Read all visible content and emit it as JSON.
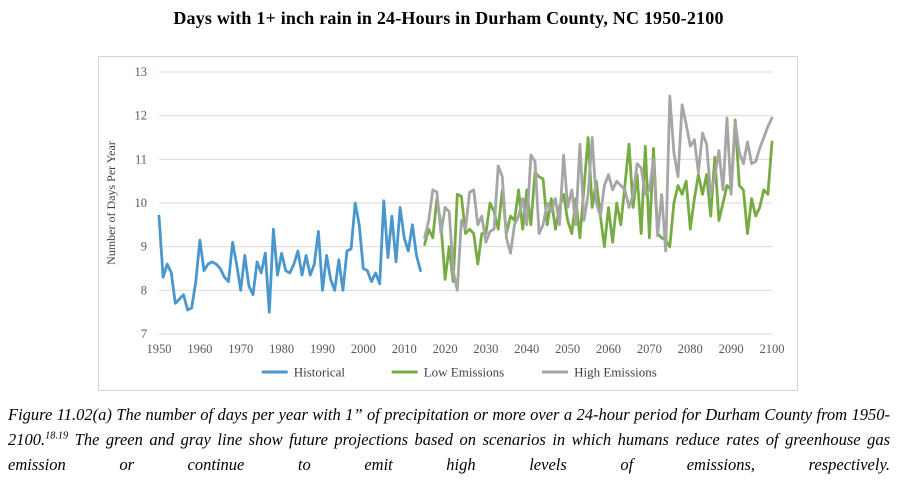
{
  "chart_data": {
    "type": "line",
    "title": "Days with 1+ inch rain in 24-Hours in Durham County, NC 1950-2100",
    "xlabel": "",
    "ylabel": "Number of Days Per Year",
    "ylim": [
      7,
      13
    ],
    "yticks": [
      7,
      8,
      9,
      10,
      11,
      12,
      13
    ],
    "xlim": [
      1950,
      2100
    ],
    "xticks": [
      1950,
      1960,
      1970,
      1980,
      1990,
      2000,
      2010,
      2020,
      2030,
      2040,
      2050,
      2060,
      2070,
      2080,
      2090,
      2100
    ],
    "grid": "horizontal",
    "grid_color": "#D9D9D9",
    "axis_text_color": "#595959",
    "legend_position": "bottom",
    "series": [
      {
        "name": "Historical",
        "color": "#4A97CE",
        "start_year": 1950,
        "values": [
          9.7,
          8.3,
          8.6,
          8.4,
          7.7,
          7.8,
          7.9,
          7.55,
          7.6,
          8.2,
          9.15,
          8.45,
          8.6,
          8.65,
          8.6,
          8.5,
          8.3,
          8.2,
          9.1,
          8.6,
          8.0,
          8.8,
          8.1,
          7.9,
          8.65,
          8.4,
          8.85,
          7.5,
          9.4,
          8.35,
          8.85,
          8.45,
          8.4,
          8.6,
          8.9,
          8.35,
          8.8,
          8.35,
          8.6,
          9.35,
          8.0,
          8.8,
          8.25,
          8.0,
          8.7,
          8.0,
          8.9,
          8.95,
          10.0,
          9.5,
          8.5,
          8.45,
          8.2,
          8.4,
          8.15,
          10.05,
          8.75,
          9.7,
          8.65,
          9.9,
          9.2,
          8.9,
          9.5,
          8.8,
          8.45
        ]
      },
      {
        "name": "Low Emissions",
        "color": "#77AC43",
        "start_year": 2015,
        "values": [
          9.05,
          9.4,
          9.2,
          10.1,
          9.5,
          8.25,
          9.0,
          8.2,
          10.2,
          10.15,
          9.3,
          9.4,
          9.3,
          8.6,
          9.3,
          9.3,
          10.0,
          9.8,
          9.4,
          10.3,
          9.3,
          9.7,
          9.6,
          10.3,
          9.4,
          10.3,
          9.5,
          10.7,
          10.6,
          10.55,
          9.5,
          10.1,
          9.4,
          9.9,
          10.2,
          9.6,
          9.3,
          10.1,
          9.2,
          10.35,
          11.5,
          9.9,
          10.5,
          9.7,
          9.0,
          9.9,
          9.1,
          10.0,
          9.5,
          10.4,
          11.35,
          9.9,
          10.65,
          9.3,
          11.3,
          9.2,
          11.25,
          9.3,
          9.2,
          9.15,
          9.0,
          10.0,
          10.4,
          10.2,
          10.5,
          9.4,
          10.1,
          10.65,
          10.2,
          10.65,
          9.7,
          11.05,
          9.6,
          10.0,
          10.4,
          10.3,
          11.9,
          10.4,
          10.3,
          9.3,
          10.1,
          9.7,
          9.9,
          10.3,
          10.2,
          11.4
        ]
      },
      {
        "name": "High Emissions",
        "color": "#A6A6A6",
        "start_year": 2015,
        "values": [
          9.2,
          9.6,
          10.3,
          10.25,
          9.3,
          9.9,
          9.8,
          8.45,
          8.0,
          9.6,
          9.4,
          10.25,
          10.3,
          9.5,
          9.7,
          9.1,
          9.35,
          9.4,
          10.85,
          10.6,
          9.2,
          8.85,
          9.5,
          9.7,
          10.1,
          9.5,
          11.1,
          10.95,
          9.3,
          9.5,
          10.0,
          9.8,
          10.1,
          9.5,
          11.1,
          9.9,
          10.3,
          9.5,
          11.35,
          9.6,
          10.2,
          11.5,
          10.0,
          9.7,
          10.4,
          10.65,
          10.3,
          10.5,
          10.4,
          10.3,
          9.9,
          10.2,
          10.9,
          10.8,
          10.2,
          10.3,
          11.0,
          9.25,
          10.2,
          8.9,
          12.45,
          11.15,
          10.6,
          12.25,
          11.8,
          11.3,
          11.45,
          10.7,
          11.6,
          11.35,
          10.2,
          10.6,
          11.2,
          10.3,
          11.95,
          10.2,
          11.85,
          11.15,
          10.9,
          11.4,
          10.9,
          10.95,
          11.25,
          11.5,
          11.75,
          11.95
        ]
      }
    ]
  },
  "legend": {
    "items": [
      {
        "label": "Historical",
        "color": "#4A97CE"
      },
      {
        "label": "Low Emissions",
        "color": "#77AC43"
      },
      {
        "label": "High Emissions",
        "color": "#A6A6A6"
      }
    ]
  },
  "caption": {
    "text_before_superscript": "Figure 11.02(a) The number of days per year with 1” of precipitation or more over a 24-hour period for Durham County from 1950-2100.",
    "superscript": "18.19",
    "text_after_superscript": " The green and gray line show future projections based on scenarios in which humans reduce rates of greenhouse gas emission or continue to emit high levels of emissions, respectively."
  }
}
